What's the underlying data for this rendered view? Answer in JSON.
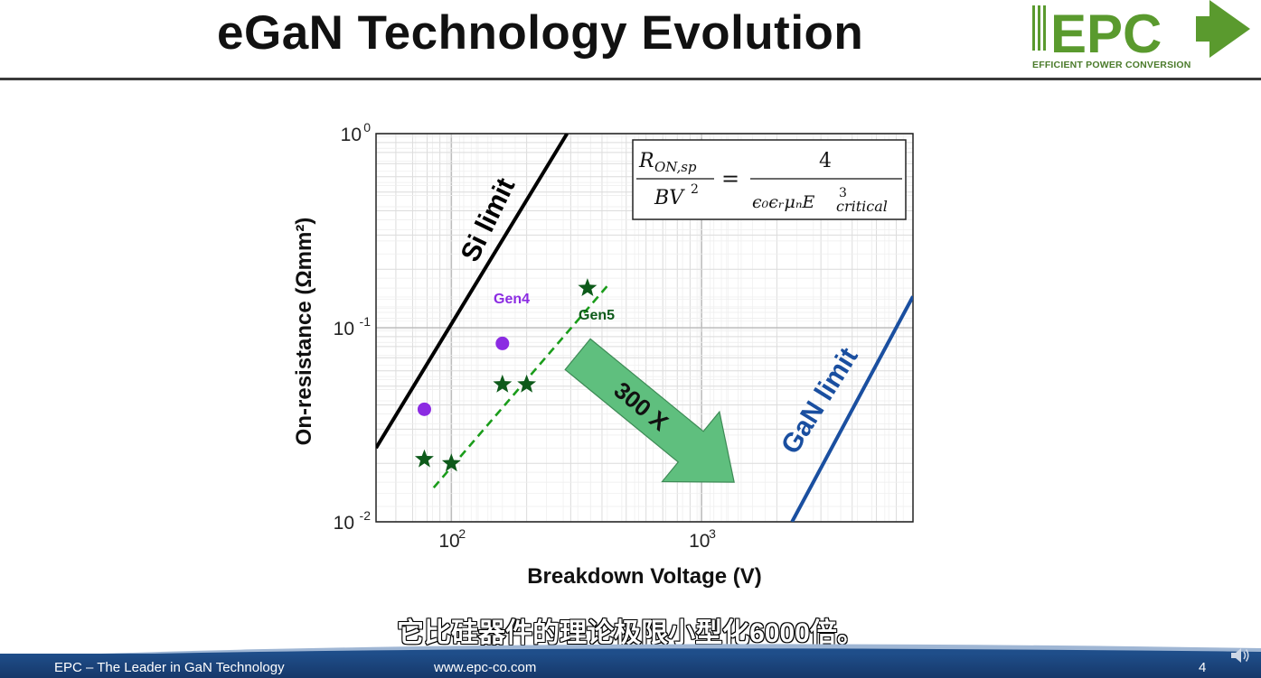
{
  "slide": {
    "title": "eGaN Technology Evolution",
    "subtitle_cn": "它比硅器件的理论极限小型化6000倍。",
    "page_number": "4"
  },
  "logo": {
    "text": "EPC",
    "tagline": "EFFICIENT POWER CONVERSION",
    "color": "#5a9a2e"
  },
  "footer": {
    "left": "EPC – The Leader in GaN Technology",
    "center": "www.epc-co.com"
  },
  "chart_data": {
    "type": "scatter",
    "xscale": "log",
    "yscale": "log",
    "xlim": [
      50,
      7000
    ],
    "ylim": [
      0.01,
      1
    ],
    "xlabel": "Breakdown Voltage (V)",
    "ylabel": "On-resistance (Ωmm²)",
    "xticks": [
      {
        "value": 100,
        "base": "10",
        "exp": "2"
      },
      {
        "value": 1000,
        "base": "10",
        "exp": "3"
      }
    ],
    "yticks": [
      {
        "value": 1,
        "base": "10",
        "exp": "0"
      },
      {
        "value": 0.1,
        "base": "10",
        "exp": "-1"
      },
      {
        "value": 0.01,
        "base": "10",
        "exp": "-2"
      }
    ],
    "grid": true,
    "series": [
      {
        "name": "Gen4",
        "marker": "circle",
        "color": "#8b2be2",
        "points": [
          [
            78,
            0.038
          ],
          [
            160,
            0.083
          ]
        ]
      },
      {
        "name": "Gen5",
        "marker": "star",
        "color": "#0d5a1a",
        "points": [
          [
            78,
            0.021
          ],
          [
            100,
            0.02
          ],
          [
            160,
            0.051
          ],
          [
            200,
            0.051
          ],
          [
            350,
            0.16
          ]
        ]
      }
    ],
    "lines": [
      {
        "label": "Si limit",
        "color": "#000000",
        "from": [
          50,
          0.024
        ],
        "to": [
          290,
          1.0
        ]
      },
      {
        "label": "GaN limit",
        "color": "#1a4fa0",
        "from": [
          2300,
          0.01
        ],
        "to": [
          7000,
          0.145
        ]
      },
      {
        "label": "",
        "color": "#1a9c1a",
        "dashed": true,
        "from": [
          85,
          0.015
        ],
        "to": [
          430,
          0.17
        ]
      }
    ],
    "arrow": {
      "label": "300 X",
      "color": "#5fbf7e",
      "from": [
        320,
        0.073
      ],
      "to": [
        1350,
        0.016
      ]
    },
    "formula": {
      "lhs_num": "R",
      "lhs_num_sub": "ON,sp",
      "lhs_den": "BV",
      "lhs_den_sup": "2",
      "rhs_num": "4",
      "rhs_den": "ϵ₀ϵᵣμₙE",
      "rhs_den_sup": "3",
      "rhs_den_sub": "critical"
    }
  }
}
